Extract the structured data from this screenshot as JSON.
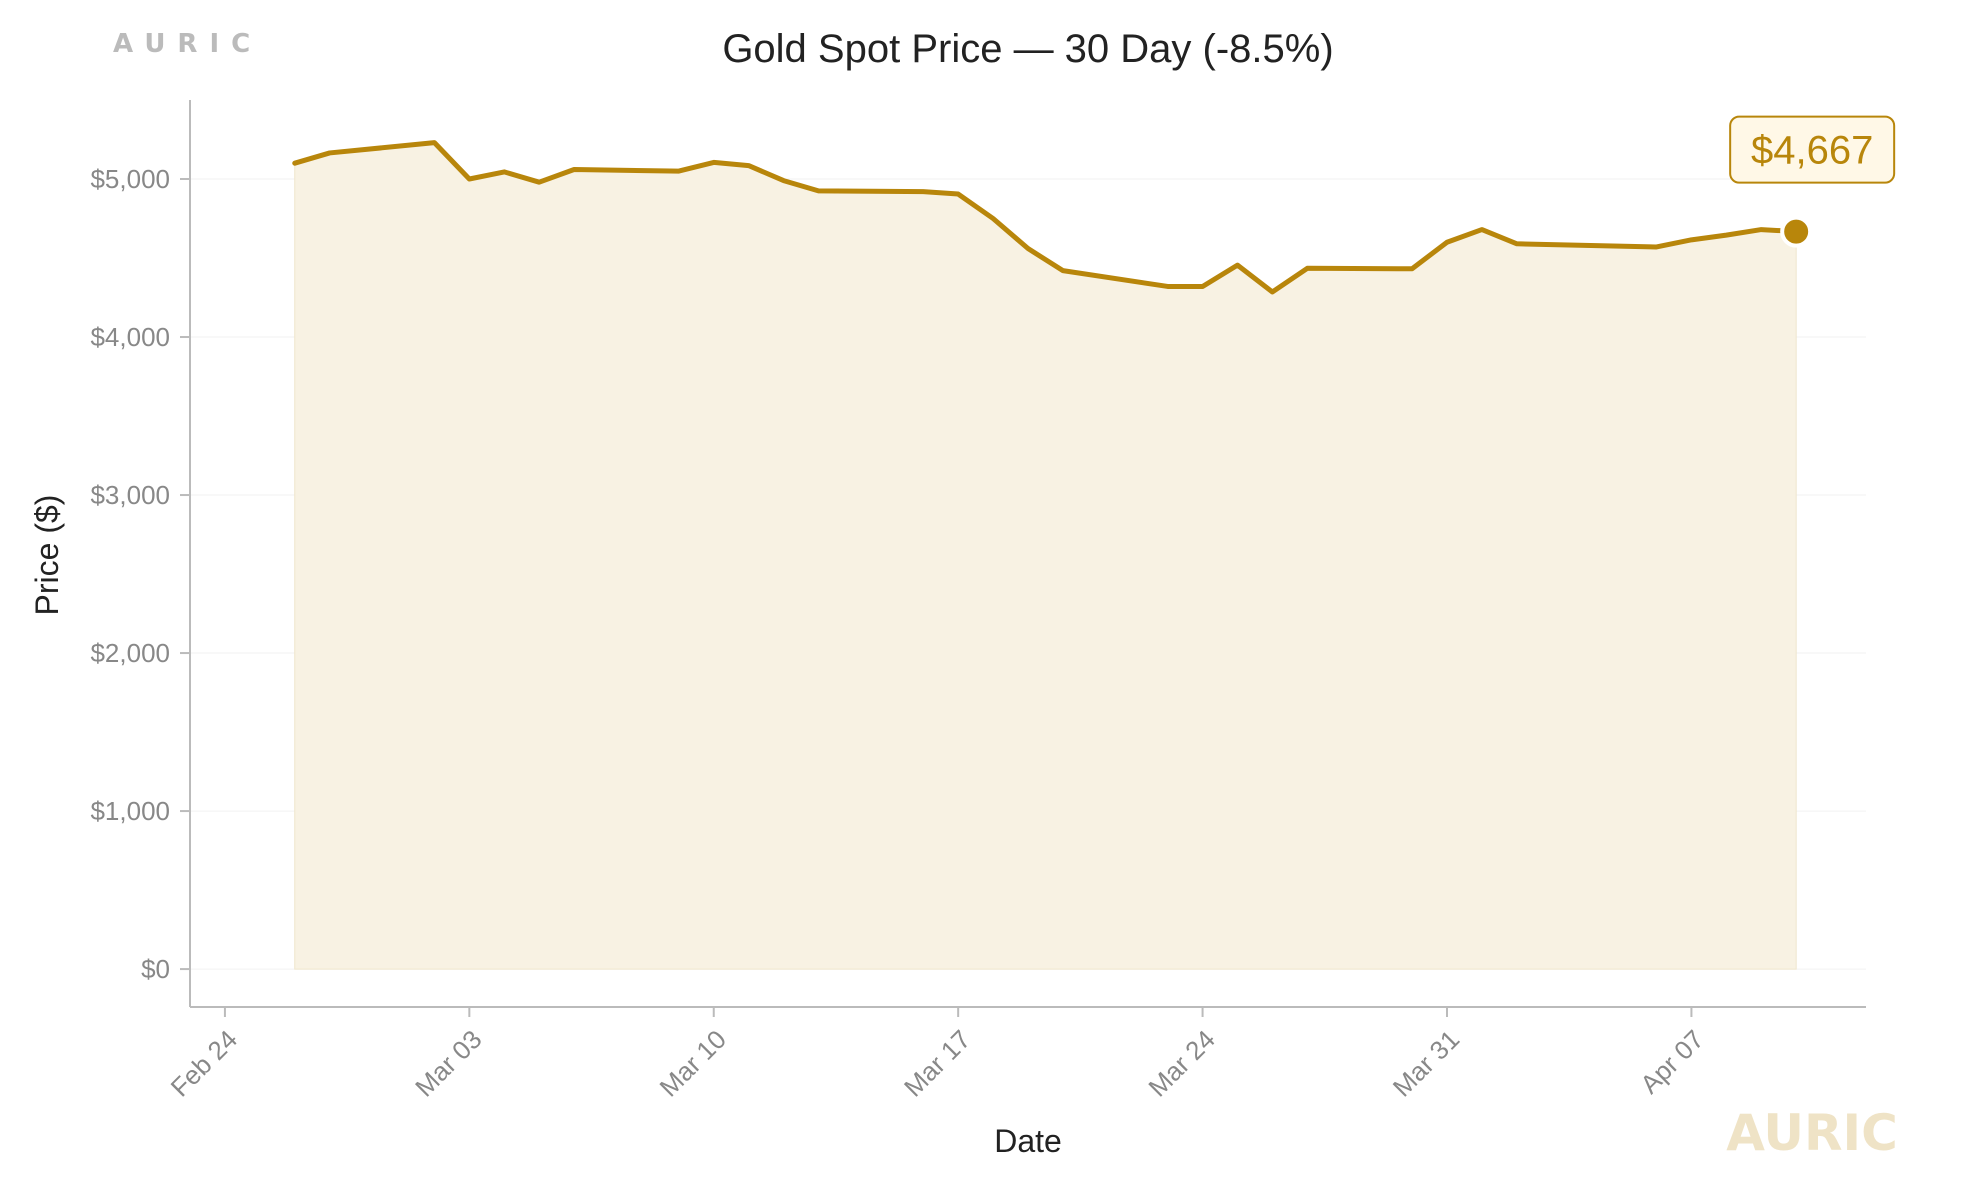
{
  "brand": {
    "top_logo": "AURIC",
    "watermark": "AURIC"
  },
  "colors": {
    "line": "#B8860B",
    "fill": "#F8F2E3",
    "text": "#222222",
    "tick": "#888888",
    "axis": "#BBBBBB",
    "grid": "#F2F2F2",
    "brand_top": "#BBBBBB",
    "brand_watermark": "#EFE3C6",
    "callout_bg": "#FFF8E7"
  },
  "chart_data": {
    "type": "area",
    "title": "Gold Spot Price — 30 Day (-8.5%)",
    "xlabel": "Date",
    "ylabel": "Price ($)",
    "ylim": [
      -240,
      5500
    ],
    "xlim": [
      "2026-02-23",
      "2026-04-12"
    ],
    "grid": true,
    "legend": "none",
    "x_ticks": [
      {
        "date": "2026-02-24",
        "label": "Feb 24"
      },
      {
        "date": "2026-03-03",
        "label": "Mar 03"
      },
      {
        "date": "2026-03-10",
        "label": "Mar 10"
      },
      {
        "date": "2026-03-17",
        "label": "Mar 17"
      },
      {
        "date": "2026-03-24",
        "label": "Mar 24"
      },
      {
        "date": "2026-03-31",
        "label": "Mar 31"
      },
      {
        "date": "2026-04-07",
        "label": "Apr 07"
      }
    ],
    "y_ticks": [
      {
        "value": 0,
        "label": "$0"
      },
      {
        "value": 1000,
        "label": "$1,000"
      },
      {
        "value": 2000,
        "label": "$2,000"
      },
      {
        "value": 3000,
        "label": "$3,000"
      },
      {
        "value": 4000,
        "label": "$4,000"
      },
      {
        "value": 5000,
        "label": "$5,000"
      }
    ],
    "series": [
      {
        "points": [
          {
            "date": "2026-02-26",
            "value": 5100
          },
          {
            "date": "2026-02-27",
            "value": 5165
          },
          {
            "date": "2026-03-02",
            "value": 5230
          },
          {
            "date": "2026-03-03",
            "value": 5000
          },
          {
            "date": "2026-03-04",
            "value": 5045
          },
          {
            "date": "2026-03-05",
            "value": 4980
          },
          {
            "date": "2026-03-06",
            "value": 5060
          },
          {
            "date": "2026-03-09",
            "value": 5050
          },
          {
            "date": "2026-03-10",
            "value": 5105
          },
          {
            "date": "2026-03-11",
            "value": 5085
          },
          {
            "date": "2026-03-12",
            "value": 4990
          },
          {
            "date": "2026-03-13",
            "value": 4925
          },
          {
            "date": "2026-03-16",
            "value": 4920
          },
          {
            "date": "2026-03-17",
            "value": 4905
          },
          {
            "date": "2026-03-18",
            "value": 4750
          },
          {
            "date": "2026-03-19",
            "value": 4560
          },
          {
            "date": "2026-03-20",
            "value": 4420
          },
          {
            "date": "2026-03-23",
            "value": 4320
          },
          {
            "date": "2026-03-24",
            "value": 4320
          },
          {
            "date": "2026-03-25",
            "value": 4455
          },
          {
            "date": "2026-03-26",
            "value": 4285
          },
          {
            "date": "2026-03-27",
            "value": 4435
          },
          {
            "date": "2026-03-30",
            "value": 4432
          },
          {
            "date": "2026-03-31",
            "value": 4600
          },
          {
            "date": "2026-04-01",
            "value": 4680
          },
          {
            "date": "2026-04-02",
            "value": 4590
          },
          {
            "date": "2026-04-06",
            "value": 4570
          },
          {
            "date": "2026-04-07",
            "value": 4615
          },
          {
            "date": "2026-04-08",
            "value": 4645
          },
          {
            "date": "2026-04-09",
            "value": 4680
          },
          {
            "date": "2026-04-10",
            "value": 4667
          }
        ]
      }
    ],
    "annotations": [
      {
        "date": "2026-04-10",
        "value": 4667,
        "text": "$4,667"
      }
    ]
  }
}
